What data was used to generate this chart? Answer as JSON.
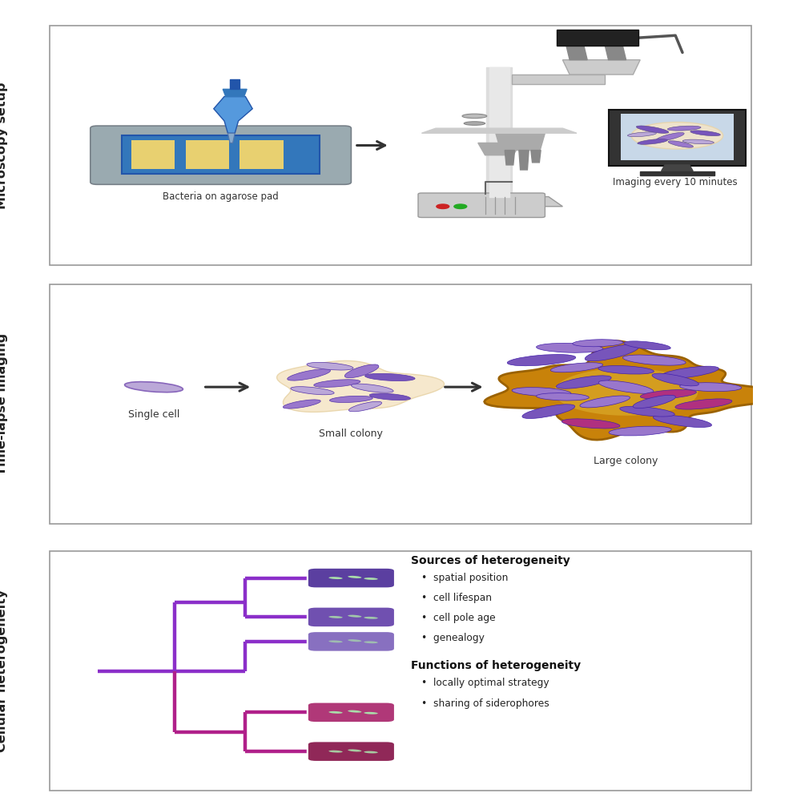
{
  "panel_titles": [
    "Microscopy setup",
    "Time-lapse imaging",
    "Cellular heterogeneity"
  ],
  "background_color": "#ffffff",
  "panel1": {
    "label1": "Bacteria on agarose pad",
    "label2": "Imaging every 10 minutes"
  },
  "panel2": {
    "label1": "Single cell",
    "label2": "Small colony",
    "label3": "Large colony"
  },
  "panel3": {
    "sources_title": "Sources of heterogeneity",
    "sources_items": [
      "spatial position",
      "cell lifespan",
      "cell pole age",
      "genealogy"
    ],
    "functions_title": "Functions of heterogeneity",
    "functions_items": [
      "locally optimal strategy",
      "sharing of siderophores"
    ],
    "tree_color_purple": "#8B2FC9",
    "tree_color_magenta": "#B0208A"
  },
  "bact_purple_dark": "#7755BB",
  "bact_purple_mid": "#9977CC",
  "bact_purple_light": "#BBA8D8",
  "bact_magenta": "#B03080",
  "colony_cream": "#F5E6C8",
  "colony_cream_edge": "#E8D4A8",
  "colony_brown": "#C8820A",
  "colony_brown_edge": "#9B6200",
  "slide_gray": "#9AAAB0",
  "slide_blue": "#3377BB",
  "slide_yellow": "#E8D070"
}
